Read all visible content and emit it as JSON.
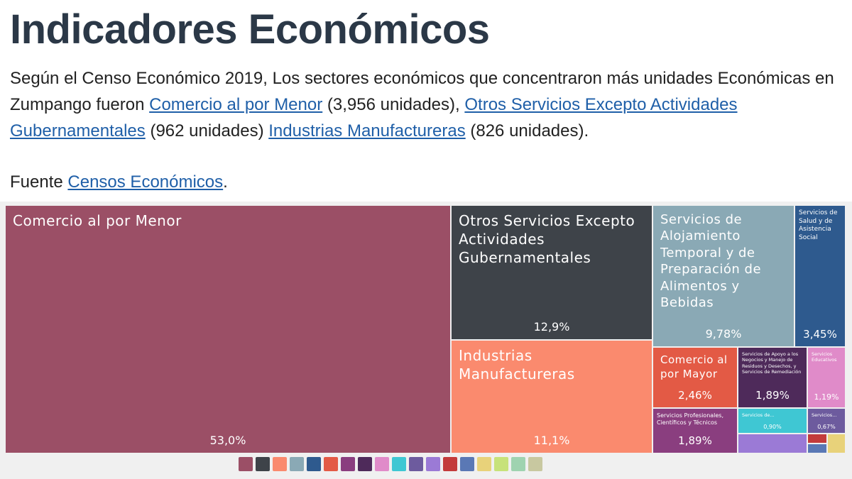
{
  "header": {
    "title": "Indicadores Económicos",
    "paragraph": [
      {
        "text": "Según el Censo Económico 2019, Los sectores económicos que concentraron más unidades Económicas en Zumpango fueron ",
        "link": false
      },
      {
        "text": "Comercio al por Menor",
        "link": true
      },
      {
        "text": " (3,956 unidades), ",
        "link": false
      },
      {
        "text": "Otros Servicios Excepto Actividades Gubernamentales",
        "link": true
      },
      {
        "text": " (962 unidades)  ",
        "link": false
      },
      {
        "text": "Industrias Manufactureras",
        "link": true
      },
      {
        "text": " (826 unidades).",
        "link": false
      }
    ],
    "source": [
      {
        "text": "Fuente ",
        "link": false
      },
      {
        "text": "Censos Económicos",
        "link": true
      },
      {
        "text": ".",
        "link": false
      }
    ]
  },
  "chart_data": {
    "type": "treemap",
    "categories": [
      "Comercio al por Menor",
      "Otros Servicios Excepto Actividades Gubernamentales",
      "Industrias Manufactureras",
      "Servicios de Alojamiento Temporal y de Preparación de Alimentos y Bebidas",
      "Servicios de Salud y de Asistencia Social",
      "Comercio al por Mayor",
      "Servicios de Apoyo a los Negocios y Manejo de Residuos y Desechos, y Servicios de Remediación",
      "Servicios Educativos",
      "Servicios Profesionales, Científicos y Técnicos",
      "Servicios de...",
      "Servicios..."
    ],
    "values": [
      53.0,
      12.9,
      11.1,
      9.78,
      3.45,
      2.46,
      1.89,
      1.19,
      1.89,
      0.9,
      0.67
    ],
    "value_labels": [
      "53,0%",
      "12,9%",
      "11,1%",
      "9,78%",
      "3,45%",
      "2,46%",
      "1,89%",
      "1,19%",
      "1,89%",
      "0,90%",
      "0,67%"
    ],
    "colors": [
      "#9b4f66",
      "#3e4349",
      "#fa8a6e",
      "#8aa9b5",
      "#2e5a8e",
      "#e35a45",
      "#4e2a5a",
      "#e08bc9",
      "#8a3e7f",
      "#3fc7d3",
      "#6d5b9e"
    ]
  }
}
